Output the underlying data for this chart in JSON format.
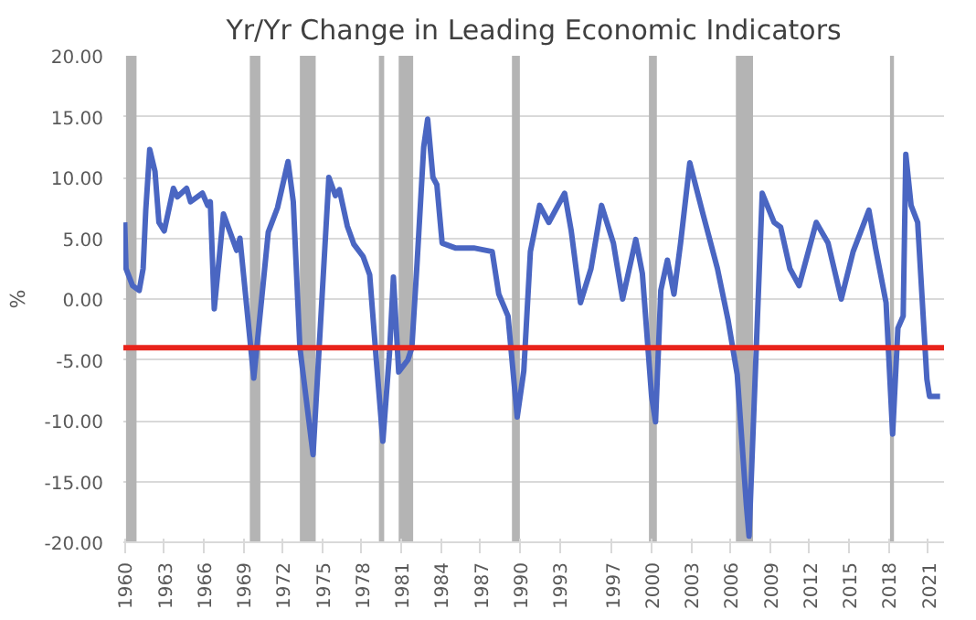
{
  "chart_data": {
    "type": "line",
    "title": "Yr/Yr Change in Leading Economic Indicators",
    "ylabel": "%",
    "x": [
      1960,
      1960.1,
      1960.6,
      1961.1,
      1961.4,
      1961.6,
      1961.9,
      1962.3,
      1962.6,
      1963.0,
      1963.7,
      1964.0,
      1964.7,
      1965.0,
      1965.9,
      1966.3,
      1966.5,
      1966.8,
      1967.5,
      1968.5,
      1968.75,
      1969.8,
      1970.9,
      1971.6,
      1972.4,
      1972.8,
      1973.3,
      1974.3,
      1975.5,
      1976.0,
      1976.3,
      1976.9,
      1977.4,
      1978.1,
      1978.6,
      1979.1,
      1979.6,
      1980.1,
      1980.4,
      1980.8,
      1981.5,
      1981.8,
      1982.2,
      1982.7,
      1983.0,
      1983.4,
      1983.7,
      1984.1,
      1985.1,
      1986.5,
      1987.9,
      1988.4,
      1989.1,
      1989.8,
      1990.3,
      1990.8,
      1991.5,
      1992.2,
      1993.4,
      1993.9,
      1994.6,
      1995.4,
      1996.2,
      1997.1,
      1997.8,
      1998.8,
      1999.3,
      2000.0,
      2000.3,
      2000.7,
      2001.2,
      2001.7,
      2002.2,
      2002.9,
      2003.9,
      2005.0,
      2005.8,
      2006.5,
      2007.2,
      2007.4,
      2008.4,
      2009.3,
      2009.8,
      2010.5,
      2011.2,
      2012.5,
      2013.4,
      2014.4,
      2015.3,
      2016.5,
      2017.0,
      2017.8,
      2018.3,
      2018.7,
      2019.1,
      2019.3,
      2019.7,
      2020.2,
      2020.9,
      2021.1,
      2021.9
    ],
    "series": [
      {
        "color": "#4a66c2",
        "values": [
          6.3,
          2.5,
          1.1,
          0.7,
          2.5,
          7.3,
          12.3,
          10.5,
          6.3,
          5.6,
          9.1,
          8.4,
          9.1,
          8.0,
          8.7,
          7.7,
          8.0,
          -0.8,
          7.0,
          4.0,
          5.0,
          -6.5,
          5.5,
          7.5,
          11.3,
          8.0,
          -4.0,
          -12.8,
          10.0,
          8.5,
          9.0,
          6.0,
          4.5,
          3.5,
          2.0,
          -5.0,
          -11.7,
          -4.5,
          1.8,
          -6.0,
          -5.0,
          -4.0,
          3.0,
          12.5,
          14.8,
          10.0,
          9.4,
          4.6,
          4.2,
          4.2,
          3.9,
          0.4,
          -1.4,
          -9.7,
          -5.9,
          3.9,
          7.7,
          6.3,
          8.7,
          5.6,
          -0.3,
          2.5,
          7.7,
          4.6,
          0.0,
          4.9,
          2.1,
          -8.0,
          -10.1,
          0.7,
          3.2,
          0.4,
          4.6,
          11.2,
          7.0,
          2.5,
          -1.7,
          -6.2,
          -17.0,
          -19.5,
          8.7,
          6.3,
          5.9,
          2.5,
          1.1,
          6.3,
          4.6,
          0.0,
          3.9,
          7.3,
          4.2,
          -0.3,
          -11.1,
          -2.4,
          -1.4,
          11.9,
          7.7,
          6.3,
          -6.6,
          -8.0,
          -8.0
        ]
      }
    ],
    "xlim": [
      1959.9,
      2022.2
    ],
    "xticks": [
      1960,
      1963,
      1966,
      1969,
      1972,
      1975,
      1978,
      1981,
      1984,
      1987,
      1990,
      1993,
      1997,
      2000,
      2003,
      2006,
      2009,
      2012,
      2015,
      2018,
      2021
    ],
    "ylim": [
      -20,
      20
    ],
    "yticks": [
      {
        "value": 20,
        "label": "20.00"
      },
      {
        "value": 15,
        "label": "15.00"
      },
      {
        "value": 10,
        "label": "10.00"
      },
      {
        "value": 5,
        "label": "5.00"
      },
      {
        "value": 0,
        "label": "0.00"
      },
      {
        "value": -5,
        "label": "-5.00"
      },
      {
        "value": -10,
        "label": "-10.00"
      },
      {
        "value": -15,
        "label": "-15.00"
      },
      {
        "value": -20,
        "label": "-20.00"
      }
    ],
    "grid": "y",
    "line_style": "solid",
    "ref_lines": [
      {
        "axis": "y",
        "value": -4,
        "color": "#e8231b",
        "line_style": "solid"
      }
    ],
    "bands": [
      {
        "axis": "x",
        "from": 1960.1,
        "to": 1960.9,
        "color": "#b4b4b4"
      },
      {
        "axis": "x",
        "from": 1969.5,
        "to": 1970.3,
        "color": "#b4b4b4"
      },
      {
        "axis": "x",
        "from": 1973.3,
        "to": 1974.5,
        "color": "#b4b4b4"
      },
      {
        "axis": "x",
        "from": 1979.3,
        "to": 1979.7,
        "color": "#b4b4b4"
      },
      {
        "axis": "x",
        "from": 1980.8,
        "to": 1981.9,
        "color": "#b4b4b4"
      },
      {
        "axis": "x",
        "from": 1989.4,
        "to": 1990.0,
        "color": "#b4b4b4"
      },
      {
        "axis": "x",
        "from": 1999.8,
        "to": 2000.4,
        "color": "#b4b4b4"
      },
      {
        "axis": "x",
        "from": 2006.4,
        "to": 2007.7,
        "color": "#b4b4b4"
      },
      {
        "axis": "x",
        "from": 2018.1,
        "to": 2018.4,
        "color": "#b4b4b4"
      }
    ]
  }
}
